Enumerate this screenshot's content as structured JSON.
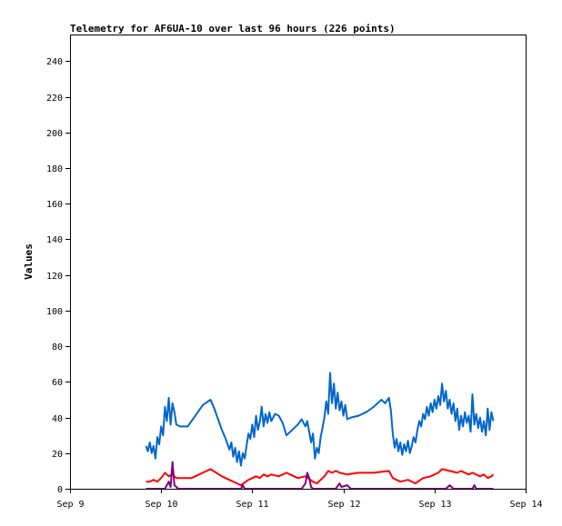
{
  "chart_data": {
    "type": "line",
    "title": "Telemetry for AF6UA-10 over last 96 hours (226 points)",
    "xlabel": "",
    "ylabel": "Values",
    "ylim": [
      0,
      255
    ],
    "yticks": [
      0,
      20,
      40,
      60,
      80,
      100,
      120,
      140,
      160,
      180,
      200,
      220,
      240
    ],
    "xlim": [
      "2024-09-09T00:00",
      "2024-09-14T00:00"
    ],
    "xticks": [
      {
        "at": "2024-09-09T00:00",
        "label": "Sep 9"
      },
      {
        "at": "2024-09-10T00:00",
        "label": "Sep 10"
      },
      {
        "at": "2024-09-11T00:00",
        "label": "Sep 11"
      },
      {
        "at": "2024-09-12T00:00",
        "label": "Sep 12"
      },
      {
        "at": "2024-09-13T00:00",
        "label": "Sep 13"
      },
      {
        "at": "2024-09-14T00:00",
        "label": "Sep 14"
      }
    ],
    "grid": false,
    "legend": "none",
    "series": [
      {
        "color": "#0066cc",
        "points": [
          [
            "2024-09-09T20:00",
            24
          ],
          [
            "2024-09-09T20:30",
            21
          ],
          [
            "2024-09-09T21:00",
            26
          ],
          [
            "2024-09-09T21:30",
            20
          ],
          [
            "2024-09-09T22:00",
            24
          ],
          [
            "2024-09-09T22:30",
            17
          ],
          [
            "2024-09-09T23:00",
            29
          ],
          [
            "2024-09-09T23:30",
            25
          ],
          [
            "2024-09-10T00:00",
            35
          ],
          [
            "2024-09-10T00:30",
            30
          ],
          [
            "2024-09-10T01:00",
            46
          ],
          [
            "2024-09-10T01:30",
            38
          ],
          [
            "2024-09-10T02:00",
            51
          ],
          [
            "2024-09-10T02:30",
            36
          ],
          [
            "2024-09-10T03:00",
            48
          ],
          [
            "2024-09-10T03:30",
            43
          ],
          [
            "2024-09-10T04:00",
            36
          ],
          [
            "2024-09-10T05:00",
            35
          ],
          [
            "2024-09-10T07:00",
            35
          ],
          [
            "2024-09-10T09:00",
            41
          ],
          [
            "2024-09-10T11:00",
            47
          ],
          [
            "2024-09-10T13:00",
            50
          ],
          [
            "2024-09-10T14:00",
            45
          ],
          [
            "2024-09-10T15:00",
            39
          ],
          [
            "2024-09-10T16:00",
            33
          ],
          [
            "2024-09-10T17:00",
            28
          ],
          [
            "2024-09-10T18:00",
            22
          ],
          [
            "2024-09-10T18:30",
            26
          ],
          [
            "2024-09-10T19:00",
            18
          ],
          [
            "2024-09-10T19:30",
            23
          ],
          [
            "2024-09-10T20:00",
            15
          ],
          [
            "2024-09-10T20:30",
            21
          ],
          [
            "2024-09-10T21:00",
            13
          ],
          [
            "2024-09-10T21:30",
            20
          ],
          [
            "2024-09-10T22:00",
            17
          ],
          [
            "2024-09-10T22:30",
            24
          ],
          [
            "2024-09-10T23:00",
            31
          ],
          [
            "2024-09-10T23:30",
            28
          ],
          [
            "2024-09-11T00:00",
            36
          ],
          [
            "2024-09-11T00:30",
            29
          ],
          [
            "2024-09-11T01:00",
            41
          ],
          [
            "2024-09-11T01:30",
            33
          ],
          [
            "2024-09-11T02:00",
            38
          ],
          [
            "2024-09-11T02:30",
            46
          ],
          [
            "2024-09-11T03:00",
            35
          ],
          [
            "2024-09-11T03:30",
            42
          ],
          [
            "2024-09-11T04:00",
            37
          ],
          [
            "2024-09-11T04:30",
            43
          ],
          [
            "2024-09-11T05:00",
            38
          ],
          [
            "2024-09-11T06:00",
            42
          ],
          [
            "2024-09-11T07:00",
            41
          ],
          [
            "2024-09-11T08:00",
            37
          ],
          [
            "2024-09-11T09:00",
            30
          ],
          [
            "2024-09-11T10:00",
            32
          ],
          [
            "2024-09-11T11:00",
            34
          ],
          [
            "2024-09-11T12:00",
            36
          ],
          [
            "2024-09-11T13:00",
            39
          ],
          [
            "2024-09-11T14:00",
            35
          ],
          [
            "2024-09-11T14:30",
            38
          ],
          [
            "2024-09-11T15:00",
            32
          ],
          [
            "2024-09-11T15:30",
            26
          ],
          [
            "2024-09-11T16:00",
            31
          ],
          [
            "2024-09-11T16:30",
            17
          ],
          [
            "2024-09-11T17:00",
            23
          ],
          [
            "2024-09-11T17:30",
            20
          ],
          [
            "2024-09-11T18:00",
            29
          ],
          [
            "2024-09-11T18:30",
            34
          ],
          [
            "2024-09-11T19:00",
            40
          ],
          [
            "2024-09-11T19:30",
            49
          ],
          [
            "2024-09-11T20:00",
            42
          ],
          [
            "2024-09-11T20:30",
            65
          ],
          [
            "2024-09-11T21:00",
            48
          ],
          [
            "2024-09-11T21:30",
            59
          ],
          [
            "2024-09-11T22:00",
            45
          ],
          [
            "2024-09-11T22:30",
            54
          ],
          [
            "2024-09-11T23:00",
            44
          ],
          [
            "2024-09-11T23:30",
            49
          ],
          [
            "2024-09-12T00:00",
            41
          ],
          [
            "2024-09-12T00:30",
            47
          ],
          [
            "2024-09-12T01:00",
            39
          ],
          [
            "2024-09-12T02:00",
            40
          ],
          [
            "2024-09-12T04:00",
            41
          ],
          [
            "2024-09-12T06:00",
            43
          ],
          [
            "2024-09-12T08:00",
            46
          ],
          [
            "2024-09-12T10:00",
            50
          ],
          [
            "2024-09-12T11:00",
            48
          ],
          [
            "2024-09-12T12:00",
            51
          ],
          [
            "2024-09-12T12:30",
            44
          ],
          [
            "2024-09-12T13:00",
            31
          ],
          [
            "2024-09-12T13:30",
            23
          ],
          [
            "2024-09-12T14:00",
            28
          ],
          [
            "2024-09-12T14:30",
            21
          ],
          [
            "2024-09-12T15:00",
            26
          ],
          [
            "2024-09-12T15:30",
            19
          ],
          [
            "2024-09-12T16:00",
            25
          ],
          [
            "2024-09-12T16:30",
            21
          ],
          [
            "2024-09-12T17:00",
            27
          ],
          [
            "2024-09-12T17:30",
            20
          ],
          [
            "2024-09-12T18:00",
            24
          ],
          [
            "2024-09-12T18:30",
            29
          ],
          [
            "2024-09-12T19:00",
            26
          ],
          [
            "2024-09-12T19:30",
            33
          ],
          [
            "2024-09-12T20:00",
            38
          ],
          [
            "2024-09-12T20:30",
            35
          ],
          [
            "2024-09-12T21:00",
            42
          ],
          [
            "2024-09-12T21:30",
            39
          ],
          [
            "2024-09-12T22:00",
            46
          ],
          [
            "2024-09-12T22:30",
            41
          ],
          [
            "2024-09-12T23:00",
            48
          ],
          [
            "2024-09-12T23:30",
            43
          ],
          [
            "2024-09-13T00:00",
            50
          ],
          [
            "2024-09-13T00:30",
            45
          ],
          [
            "2024-09-13T01:00",
            52
          ],
          [
            "2024-09-13T01:30",
            47
          ],
          [
            "2024-09-13T02:00",
            59
          ],
          [
            "2024-09-13T02:30",
            49
          ],
          [
            "2024-09-13T03:00",
            55
          ],
          [
            "2024-09-13T03:30",
            45
          ],
          [
            "2024-09-13T04:00",
            50
          ],
          [
            "2024-09-13T04:30",
            42
          ],
          [
            "2024-09-13T05:00",
            48
          ],
          [
            "2024-09-13T05:30",
            38
          ],
          [
            "2024-09-13T06:00",
            45
          ],
          [
            "2024-09-13T06:30",
            33
          ],
          [
            "2024-09-13T07:00",
            41
          ],
          [
            "2024-09-13T07:30",
            35
          ],
          [
            "2024-09-13T08:00",
            43
          ],
          [
            "2024-09-13T08:30",
            37
          ],
          [
            "2024-09-13T09:00",
            41
          ],
          [
            "2024-09-13T09:30",
            32
          ],
          [
            "2024-09-13T10:00",
            53
          ],
          [
            "2024-09-13T10:30",
            36
          ],
          [
            "2024-09-13T11:00",
            42
          ],
          [
            "2024-09-13T11:30",
            34
          ],
          [
            "2024-09-13T12:00",
            40
          ],
          [
            "2024-09-13T12:30",
            32
          ],
          [
            "2024-09-13T13:00",
            38
          ],
          [
            "2024-09-13T13:30",
            30
          ],
          [
            "2024-09-13T14:00",
            45
          ],
          [
            "2024-09-13T14:30",
            33
          ],
          [
            "2024-09-13T15:00",
            43
          ],
          [
            "2024-09-13T15:30",
            38
          ]
        ]
      },
      {
        "color": "#ff0000",
        "points": [
          [
            "2024-09-09T20:00",
            4
          ],
          [
            "2024-09-09T21:00",
            4
          ],
          [
            "2024-09-09T22:00",
            5
          ],
          [
            "2024-09-09T23:00",
            4
          ],
          [
            "2024-09-10T00:00",
            6
          ],
          [
            "2024-09-10T01:00",
            9
          ],
          [
            "2024-09-10T02:00",
            7
          ],
          [
            "2024-09-10T03:00",
            8
          ],
          [
            "2024-09-10T04:00",
            6
          ],
          [
            "2024-09-10T08:00",
            6
          ],
          [
            "2024-09-10T13:00",
            11
          ],
          [
            "2024-09-10T16:00",
            7
          ],
          [
            "2024-09-10T19:00",
            4
          ],
          [
            "2024-09-10T21:00",
            2
          ],
          [
            "2024-09-10T23:00",
            5
          ],
          [
            "2024-09-11T01:00",
            7
          ],
          [
            "2024-09-11T02:00",
            6
          ],
          [
            "2024-09-11T03:00",
            8
          ],
          [
            "2024-09-11T04:00",
            7
          ],
          [
            "2024-09-11T05:00",
            8
          ],
          [
            "2024-09-11T07:00",
            7
          ],
          [
            "2024-09-11T09:00",
            9
          ],
          [
            "2024-09-11T10:00",
            8
          ],
          [
            "2024-09-11T12:00",
            6
          ],
          [
            "2024-09-11T14:00",
            7
          ],
          [
            "2024-09-11T16:00",
            4
          ],
          [
            "2024-09-11T17:00",
            3
          ],
          [
            "2024-09-11T18:00",
            5
          ],
          [
            "2024-09-11T19:00",
            7
          ],
          [
            "2024-09-11T20:00",
            10
          ],
          [
            "2024-09-11T21:00",
            9
          ],
          [
            "2024-09-11T22:00",
            10
          ],
          [
            "2024-09-11T23:00",
            9
          ],
          [
            "2024-09-12T01:00",
            8
          ],
          [
            "2024-09-12T04:00",
            9
          ],
          [
            "2024-09-12T08:00",
            9
          ],
          [
            "2024-09-12T12:00",
            10
          ],
          [
            "2024-09-12T13:00",
            6
          ],
          [
            "2024-09-12T15:00",
            4
          ],
          [
            "2024-09-12T17:00",
            5
          ],
          [
            "2024-09-12T19:00",
            3
          ],
          [
            "2024-09-12T21:00",
            6
          ],
          [
            "2024-09-12T23:00",
            7
          ],
          [
            "2024-09-13T01:00",
            9
          ],
          [
            "2024-09-13T02:00",
            11
          ],
          [
            "2024-09-13T04:00",
            10
          ],
          [
            "2024-09-13T06:00",
            9
          ],
          [
            "2024-09-13T07:00",
            10
          ],
          [
            "2024-09-13T09:00",
            8
          ],
          [
            "2024-09-13T10:00",
            9
          ],
          [
            "2024-09-13T12:00",
            7
          ],
          [
            "2024-09-13T13:00",
            8
          ],
          [
            "2024-09-13T14:00",
            6
          ],
          [
            "2024-09-13T15:00",
            7
          ],
          [
            "2024-09-13T15:30",
            8
          ]
        ]
      },
      {
        "color": "#800080",
        "points": [
          [
            "2024-09-09T20:00",
            0
          ],
          [
            "2024-09-10T01:00",
            0
          ],
          [
            "2024-09-10T02:00",
            4
          ],
          [
            "2024-09-10T02:30",
            1
          ],
          [
            "2024-09-10T03:00",
            15
          ],
          [
            "2024-09-10T03:30",
            2
          ],
          [
            "2024-09-10T04:30",
            0
          ],
          [
            "2024-09-10T21:00",
            0
          ],
          [
            "2024-09-10T21:30",
            2
          ],
          [
            "2024-09-10T22:00",
            0
          ],
          [
            "2024-09-11T13:00",
            0
          ],
          [
            "2024-09-11T14:00",
            3
          ],
          [
            "2024-09-11T14:30",
            9
          ],
          [
            "2024-09-11T15:00",
            6
          ],
          [
            "2024-09-11T15:30",
            1
          ],
          [
            "2024-09-11T16:00",
            0
          ],
          [
            "2024-09-11T22:00",
            0
          ],
          [
            "2024-09-11T23:00",
            3
          ],
          [
            "2024-09-11T23:30",
            1
          ],
          [
            "2024-09-12T01:00",
            2
          ],
          [
            "2024-09-12T02:00",
            0
          ],
          [
            "2024-09-13T03:00",
            0
          ],
          [
            "2024-09-13T04:00",
            2
          ],
          [
            "2024-09-13T05:00",
            0
          ],
          [
            "2024-09-13T10:00",
            0
          ],
          [
            "2024-09-13T10:30",
            2
          ],
          [
            "2024-09-13T11:00",
            0
          ],
          [
            "2024-09-13T15:30",
            0
          ]
        ]
      }
    ]
  }
}
